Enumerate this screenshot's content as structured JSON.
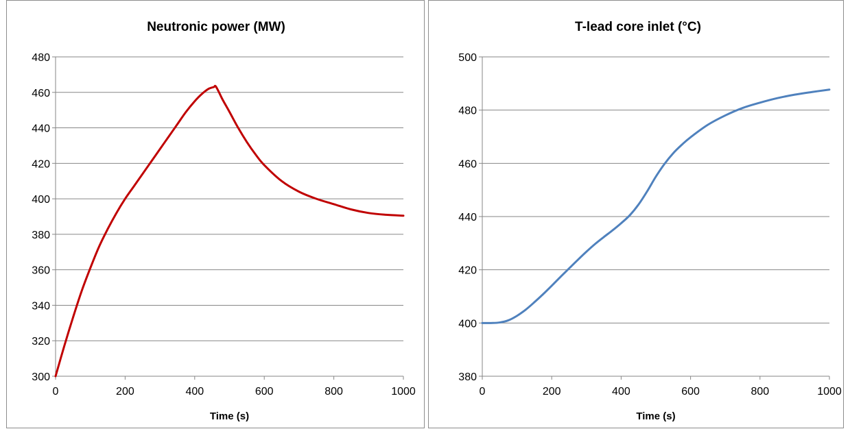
{
  "chart_data": [
    {
      "type": "line",
      "title": "Neutronic power (MW)",
      "xlabel": "Time (s)",
      "ylabel": "",
      "xlim": [
        0,
        1000
      ],
      "ylim": [
        300,
        480
      ],
      "xticks": [
        0,
        200,
        400,
        600,
        800,
        1000
      ],
      "yticks": [
        300,
        320,
        340,
        360,
        380,
        400,
        420,
        440,
        460,
        480
      ],
      "grid": "horizontal",
      "legend": "none",
      "series": [
        {
          "color": "#C00000",
          "x": [
            0,
            25,
            50,
            75,
            100,
            125,
            150,
            175,
            200,
            225,
            250,
            275,
            300,
            325,
            350,
            375,
            400,
            420,
            440,
            455,
            460,
            470,
            480,
            500,
            525,
            550,
            575,
            600,
            650,
            700,
            750,
            800,
            850,
            900,
            950,
            1000
          ],
          "y": [
            300,
            317,
            333,
            348,
            361,
            373,
            383,
            392,
            400,
            407,
            414,
            421,
            428,
            435,
            442,
            449,
            455,
            459,
            462,
            463,
            463.5,
            460,
            456,
            449,
            440,
            432,
            425,
            419,
            410,
            404,
            400,
            397,
            394,
            392,
            391,
            390.5
          ]
        }
      ]
    },
    {
      "type": "line",
      "title": "T-lead core inlet (°C)",
      "xlabel": "Time (s)",
      "ylabel": "",
      "xlim": [
        0,
        1000
      ],
      "ylim": [
        380,
        500
      ],
      "xticks": [
        0,
        200,
        400,
        600,
        800,
        1000
      ],
      "yticks": [
        380,
        400,
        420,
        440,
        460,
        480,
        500
      ],
      "grid": "horizontal",
      "legend": "none",
      "series": [
        {
          "color": "#4F81BD",
          "x": [
            0,
            25,
            50,
            75,
            100,
            125,
            150,
            175,
            200,
            225,
            250,
            275,
            300,
            325,
            350,
            375,
            400,
            425,
            450,
            475,
            500,
            525,
            550,
            575,
            600,
            650,
            700,
            750,
            800,
            850,
            900,
            950,
            1000
          ],
          "y": [
            400,
            400,
            400.2,
            401,
            402.7,
            405,
            407.8,
            410.8,
            414,
            417.3,
            420.5,
            423.7,
            426.8,
            429.7,
            432.3,
            434.8,
            437.5,
            440.5,
            444.5,
            449.5,
            455,
            459.8,
            463.8,
            467,
            469.8,
            474.5,
            478,
            480.8,
            482.8,
            484.5,
            485.8,
            486.8,
            487.7
          ]
        }
      ]
    }
  ]
}
